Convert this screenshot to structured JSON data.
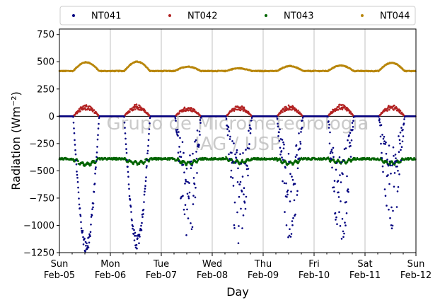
{
  "chart_data": {
    "type": "scatter",
    "xlabel": "Day",
    "ylabel": "Radiation (Wm⁻²)",
    "ylim": [
      -1250,
      800
    ],
    "xlim": [
      0,
      7
    ],
    "grid": "vertical",
    "legend_position": "top",
    "legend_columns": 4,
    "watermark": [
      "Grupo de Micrometeorologia",
      "IAG / USP"
    ],
    "y_ticks": [
      {
        "value": 750,
        "label": "750"
      },
      {
        "value": 500,
        "label": "500"
      },
      {
        "value": 250,
        "label": "250"
      },
      {
        "value": 0,
        "label": "0"
      },
      {
        "value": -250,
        "label": "−250"
      },
      {
        "value": -500,
        "label": "−500"
      },
      {
        "value": -750,
        "label": "−750"
      },
      {
        "value": -1000,
        "label": "−1000"
      },
      {
        "value": -1250,
        "label": "−1250"
      }
    ],
    "x_ticks": [
      {
        "value": 0,
        "day": "Sun",
        "date": "Feb-05"
      },
      {
        "value": 1,
        "day": "Mon",
        "date": "Feb-06"
      },
      {
        "value": 2,
        "day": "Tue",
        "date": "Feb-07"
      },
      {
        "value": 3,
        "day": "Wed",
        "date": "Feb-08"
      },
      {
        "value": 4,
        "day": "Thu",
        "date": "Feb-09"
      },
      {
        "value": 5,
        "day": "Fri",
        "date": "Feb-10"
      },
      {
        "value": 6,
        "day": "Sat",
        "date": "Feb-11"
      },
      {
        "value": 7,
        "day": "Sun",
        "date": "Feb-12"
      }
    ],
    "series": [
      {
        "name": "NT041",
        "color": "#00007f",
        "night_value": 0,
        "day_troughs": [
          -1250,
          -1220,
          -1200,
          -1210,
          -1150,
          -1200,
          -1050
        ]
      },
      {
        "name": "NT042",
        "color": "#b22222",
        "night_value": 0,
        "day_peaks": [
          105,
          110,
          90,
          100,
          105,
          110,
          105
        ]
      },
      {
        "name": "NT043",
        "color": "#006400",
        "baseline": -390,
        "day_dips": [
          -440,
          -430,
          -430,
          -420,
          -430,
          -420,
          -430
        ]
      },
      {
        "name": "NT044",
        "color": "#b8860b",
        "baseline": 415,
        "day_peaks": [
          495,
          500,
          455,
          440,
          460,
          465,
          490
        ]
      }
    ]
  }
}
